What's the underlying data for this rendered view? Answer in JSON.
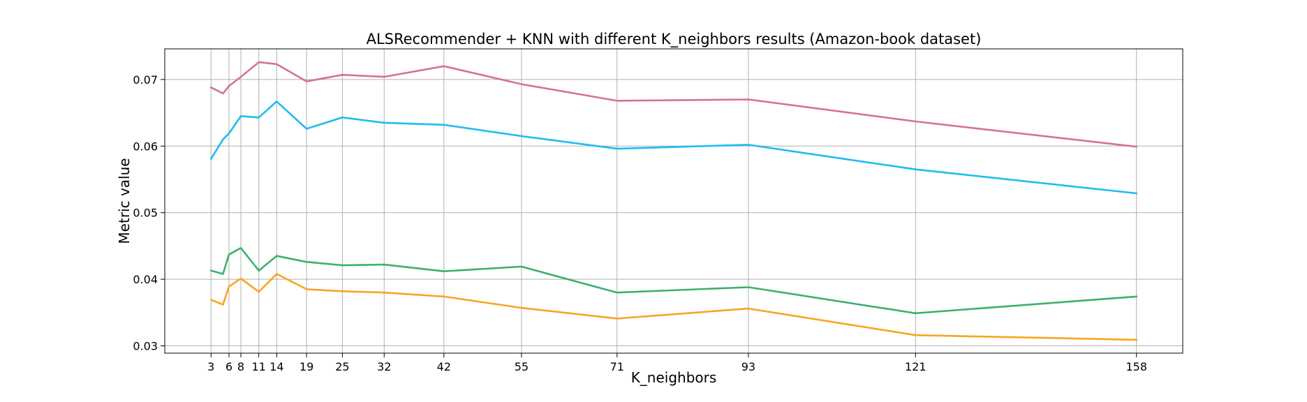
{
  "chart_data": {
    "type": "line",
    "title": "ALSRecommender + KNN with different K_neighbors results (Amazon-book dataset)",
    "xlabel": "K_neighbors",
    "ylabel": "Metric value",
    "x": [
      3,
      5,
      6,
      8,
      11,
      14,
      19,
      25,
      32,
      42,
      55,
      71,
      93,
      121,
      158
    ],
    "x_ticks": [
      3,
      6,
      8,
      11,
      14,
      19,
      25,
      32,
      42,
      55,
      71,
      93,
      121,
      158
    ],
    "y_ticks": [
      "0.03",
      "0.04",
      "0.05",
      "0.06",
      "0.07"
    ],
    "xlim": [
      -4.75,
      165.75
    ],
    "ylim": [
      0.0289,
      0.0746
    ],
    "grid": true,
    "series": [
      {
        "color": "#d4719a",
        "values": [
          0.0688,
          0.0679,
          0.069,
          0.0704,
          0.0726,
          0.0723,
          0.0697,
          0.0707,
          0.0704,
          0.072,
          0.0693,
          0.0668,
          0.067,
          0.0637,
          0.0599
        ]
      },
      {
        "color": "#1ebcf0",
        "values": [
          0.0581,
          0.061,
          0.0619,
          0.0645,
          0.0643,
          0.0667,
          0.0626,
          0.0643,
          0.0635,
          0.0632,
          0.0615,
          0.0596,
          0.0602,
          0.0565,
          0.0529
        ]
      },
      {
        "color": "#3cb06e",
        "values": [
          0.0413,
          0.0408,
          0.0437,
          0.0447,
          0.0413,
          0.0435,
          0.0426,
          0.0421,
          0.0422,
          0.0412,
          0.0419,
          0.038,
          0.0388,
          0.0349,
          0.0374
        ]
      },
      {
        "color": "#f8a520",
        "values": [
          0.0369,
          0.0362,
          0.0389,
          0.0401,
          0.0381,
          0.0408,
          0.0385,
          0.0382,
          0.038,
          0.0374,
          0.0357,
          0.0341,
          0.0356,
          0.0316,
          0.0309
        ]
      }
    ]
  }
}
